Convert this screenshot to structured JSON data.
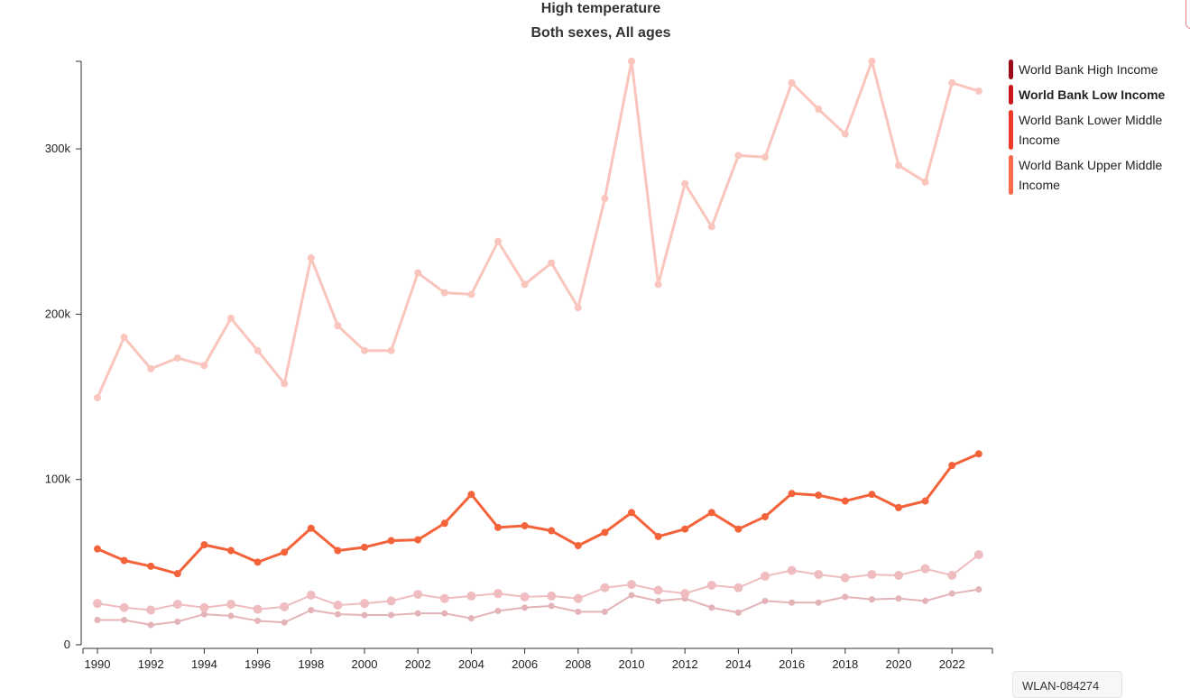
{
  "chart_data": {
    "type": "line",
    "title": "High temperature",
    "subtitle": "Both sexes, All ages",
    "x": [
      1990,
      1991,
      1992,
      1993,
      1994,
      1995,
      1996,
      1997,
      1998,
      1999,
      2000,
      2001,
      2002,
      2003,
      2004,
      2005,
      2006,
      2007,
      2008,
      2009,
      2010,
      2011,
      2012,
      2013,
      2014,
      2015,
      2016,
      2017,
      2018,
      2019,
      2020,
      2021,
      2022,
      2023
    ],
    "xticks": [
      "1990",
      "1992",
      "1994",
      "1996",
      "1998",
      "2000",
      "2002",
      "2004",
      "2006",
      "2008",
      "2010",
      "2012",
      "2014",
      "2016",
      "2018",
      "2020",
      "2022"
    ],
    "yticks": [
      {
        "v": 0,
        "label": "0"
      },
      {
        "v": 100000,
        "label": "100k"
      },
      {
        "v": 200000,
        "label": "200k"
      },
      {
        "v": 300000,
        "label": "300k"
      }
    ],
    "ylim": [
      0,
      353000
    ],
    "xlim": [
      1989.5,
      2023.6
    ],
    "legend_position": "right",
    "highlighted": "World Bank Low Income",
    "series": [
      {
        "name": "World Bank High Income",
        "color": "#9b0a16",
        "line_color": "#e3b3b8",
        "values": [
          15000,
          15000,
          12000,
          14000,
          18500,
          17500,
          14500,
          13500,
          21000,
          18500,
          18000,
          18000,
          19000,
          19000,
          16000,
          20500,
          22500,
          23500,
          20000,
          20000,
          30000,
          26500,
          28000,
          22500,
          19500,
          26500,
          25500,
          25500,
          29000,
          27500,
          28000,
          26500,
          31000,
          33500
        ]
      },
      {
        "name": "World Bank Low Income",
        "color": "#c9161e",
        "line_color": "#f4623a",
        "values": [
          58000,
          51000,
          47500,
          43000,
          60500,
          57000,
          50000,
          56000,
          70500,
          57000,
          59000,
          63000,
          63500,
          73500,
          91000,
          71000,
          72000,
          69000,
          60000,
          68000,
          80000,
          65500,
          70000,
          80000,
          70000,
          77500,
          91500,
          90500,
          87000,
          91000,
          83000,
          87000,
          108500,
          115500
        ]
      },
      {
        "name": "World Bank Lower Middle Income",
        "color": "#ee3a2a",
        "line_color": "#f9c5bd",
        "values": [
          149500,
          186000,
          167000,
          173500,
          169000,
          197500,
          178000,
          158000,
          234000,
          193000,
          178000,
          178000,
          225000,
          213000,
          212000,
          244000,
          218000,
          231000,
          204000,
          270000,
          353000,
          218000,
          279000,
          253000,
          296000,
          295000,
          340000,
          324000,
          309000,
          353000,
          290000,
          280000,
          340000,
          335000
        ]
      },
      {
        "name": "World Bank Upper Middle Income",
        "color": "#fb6a4a",
        "line_color": "#efbcc0",
        "values": [
          25000,
          22500,
          21000,
          24500,
          22500,
          24500,
          21500,
          23000,
          30000,
          24000,
          25000,
          26500,
          30500,
          28000,
          29500,
          31000,
          29000,
          29500,
          28000,
          34500,
          36500,
          33000,
          31000,
          36000,
          34500,
          41500,
          45000,
          42500,
          40500,
          42500,
          42000,
          46000,
          42000,
          54500
        ]
      }
    ]
  },
  "tooltip": "WLAN-084274"
}
